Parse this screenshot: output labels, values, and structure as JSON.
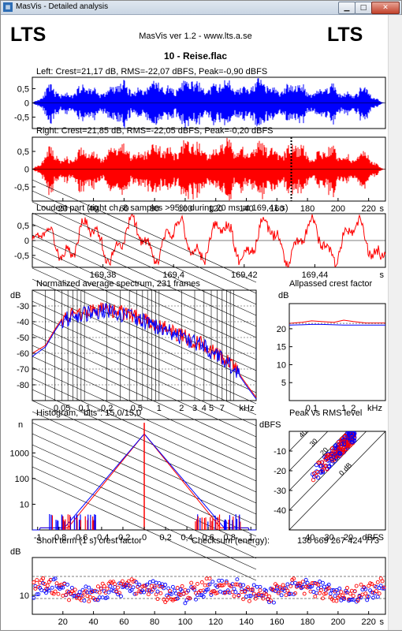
{
  "window": {
    "title": "MasVis - Detailed analysis",
    "icon": "app-icon",
    "minimize_glyph": "▁",
    "maximize_glyph": "□",
    "close_glyph": "✕"
  },
  "header": {
    "logo_left": "LTS",
    "logo_right": "LTS",
    "version": "MasVis ver 1.2 - www.lts.a.se",
    "file": "10 - Reise.flac"
  },
  "colors": {
    "left": "#0000ff",
    "right": "#ff0000",
    "grid": "#000000"
  },
  "chart_data": [
    {
      "id": "left-waveform",
      "type": "line",
      "title": "Left: Crest=21,17 dB, RMS=-22,07 dBFS, Peak=-0,90 dBFS",
      "y_ticks": [
        "0,5",
        "0",
        "-0,5"
      ],
      "y_tick_values": [
        0.5,
        0,
        -0.5
      ],
      "ylim": [
        -0.9,
        0.9
      ],
      "xlim": [
        0,
        231
      ],
      "color": "#0000ff"
    },
    {
      "id": "right-waveform",
      "type": "line",
      "title": "Right: Crest=21,85 dB, RMS=-22,05 dBFS, Peak=-0,20 dBFS",
      "y_ticks": [
        "0,5",
        "0",
        "-0,5"
      ],
      "y_tick_values": [
        0.5,
        0,
        -0.5
      ],
      "ylim": [
        -0.9,
        0.9
      ],
      "xlim": [
        0,
        231
      ],
      "x_ticks": [
        "20",
        "40",
        "60",
        "80",
        "100",
        "120",
        "140",
        "160",
        "180",
        "200",
        "220",
        "s"
      ],
      "x_tick_values": [
        20,
        40,
        60,
        80,
        100,
        120,
        140,
        160,
        180,
        200,
        220
      ],
      "marker_x": 169.41,
      "color": "#ff0000"
    },
    {
      "id": "loudest-part",
      "type": "line",
      "title": "Loudest part (right ch, 8 samples >95% during 20 ms at 169,41 s)",
      "y_ticks": [
        "0,5",
        "0",
        "-0,5"
      ],
      "y_tick_values": [
        0.5,
        0,
        -0.5
      ],
      "ylim": [
        -0.9,
        0.9
      ],
      "xlim": [
        169.36,
        169.46
      ],
      "x_ticks": [
        "169,38",
        "169,4",
        "169,42",
        "169,44",
        "s"
      ],
      "x_tick_values": [
        169.38,
        169.4,
        169.42,
        169.44
      ],
      "color": "#ff0000"
    },
    {
      "id": "spectrum",
      "type": "line",
      "title": "Normalized average spectrum, 231 frames",
      "ylabel": "dB",
      "y_ticks": [
        "-30",
        "-40",
        "-50",
        "-60",
        "-70",
        "-80"
      ],
      "y_tick_values": [
        -30,
        -40,
        -50,
        -60,
        -70,
        -80
      ],
      "ylim": [
        -90,
        -20
      ],
      "x_ticks": [
        "0,05",
        "0,1",
        "0,2",
        "0,5",
        "1",
        "2",
        "3",
        "4",
        "5",
        "7",
        "kHz"
      ],
      "x_tick_values": [
        0.05,
        0.1,
        0.2,
        0.5,
        1,
        2,
        3,
        4,
        5,
        7
      ],
      "xlim": [
        0.02,
        20
      ],
      "xscale": "log",
      "series": [
        {
          "color": "#ff0000",
          "x": [
            0.02,
            0.03,
            0.04,
            0.05,
            0.07,
            0.1,
            0.15,
            0.2,
            0.3,
            0.5,
            0.7,
            1,
            1.5,
            2,
            3,
            4,
            5,
            7,
            10,
            15,
            20
          ],
          "y": [
            -60,
            -55,
            -45,
            -38,
            -36,
            -34,
            -33,
            -32,
            -34,
            -37,
            -40,
            -43,
            -46,
            -49,
            -52,
            -55,
            -58,
            -63,
            -68,
            -80,
            -88
          ]
        },
        {
          "color": "#0000ff",
          "x": [
            0.02,
            0.03,
            0.04,
            0.05,
            0.07,
            0.1,
            0.15,
            0.2,
            0.3,
            0.5,
            0.7,
            1,
            1.5,
            2,
            3,
            4,
            5,
            7,
            10,
            15,
            20
          ],
          "y": [
            -62,
            -56,
            -46,
            -39,
            -37,
            -35,
            -34,
            -33,
            -35,
            -38,
            -41,
            -44,
            -47,
            -50,
            -53,
            -56,
            -59,
            -64,
            -69,
            -81,
            -89
          ]
        }
      ]
    },
    {
      "id": "allpassed-crest",
      "type": "line",
      "title": "Allpassed crest factor",
      "ylabel": "dB",
      "y_ticks": [
        "20",
        "15",
        "10",
        "5"
      ],
      "y_tick_values": [
        20,
        15,
        10,
        5
      ],
      "ylim": [
        0,
        27
      ],
      "x_ticks": [
        "0,1",
        "1",
        "2",
        "kHz"
      ],
      "x_tick_values": [
        0.1,
        1,
        2
      ],
      "xlim": [
        0.02,
        20
      ],
      "xscale": "log",
      "series": [
        {
          "color": "#ff0000",
          "x": [
            0.02,
            0.05,
            0.1,
            0.2,
            0.5,
            1,
            2,
            5,
            10,
            20
          ],
          "y": [
            21.5,
            21.8,
            22.2,
            22.0,
            21.8,
            22.4,
            22.0,
            21.6,
            21.6,
            21.6
          ]
        },
        {
          "color": "#0000ff",
          "x": [
            0.02,
            0.05,
            0.1,
            0.2,
            0.5,
            1,
            2,
            5,
            10,
            20
          ],
          "y": [
            21.0,
            21.1,
            21.2,
            21.2,
            21.1,
            21.0,
            21.0,
            21.0,
            21.0,
            21.0
          ]
        }
      ]
    },
    {
      "id": "histogram",
      "type": "bar",
      "title": "Histogram, \"bits\": 15,0/15,0",
      "ylabel": "n",
      "y_ticks": [
        "1000",
        "100",
        "10"
      ],
      "y_tick_values": [
        1000,
        100,
        10
      ],
      "ylim": [
        1,
        20000
      ],
      "yscale": "log",
      "x_ticks": [
        "-1",
        "-0,8",
        "-0,6",
        "-0,4",
        "-0,2",
        "0",
        "0,2",
        "0,4",
        "0,6",
        "0,8",
        "1"
      ],
      "x_tick_values": [
        -1,
        -0.8,
        -0.6,
        -0.4,
        -0.2,
        0,
        0.2,
        0.4,
        0.6,
        0.8,
        1
      ],
      "xlim": [
        -1.05,
        1.05
      ]
    },
    {
      "id": "peak-vs-rms",
      "type": "scatter",
      "title": "Peak vs RMS level",
      "ylabel": "dBFS",
      "xlabel": "dBFS",
      "y_ticks": [
        "-10",
        "-20",
        "-30",
        "-40"
      ],
      "y_tick_values": [
        -10,
        -20,
        -30,
        -40
      ],
      "ylim": [
        -50,
        0
      ],
      "x_ticks": [
        "-40",
        "-30",
        "-20"
      ],
      "x_tick_values": [
        -40,
        -30,
        -20
      ],
      "xlim": [
        -50,
        0
      ],
      "diag_labels": [
        "40",
        "30",
        "20",
        "10",
        "0 dB"
      ],
      "diag_values": [
        40,
        30,
        20,
        10,
        0
      ]
    },
    {
      "id": "short-term-crest",
      "type": "scatter",
      "title": "Short term (1 s) crest factor",
      "ylabel": "dB",
      "y_ticks": [
        "10"
      ],
      "y_tick_values": [
        10
      ],
      "ylim": [
        4,
        22
      ],
      "x_ticks": [
        "20",
        "40",
        "60",
        "80",
        "100",
        "120",
        "140",
        "160",
        "180",
        "200",
        "220",
        "s"
      ],
      "x_tick_values": [
        20,
        40,
        60,
        80,
        100,
        120,
        140,
        160,
        180,
        200,
        220
      ],
      "xlim": [
        0,
        231
      ],
      "dashed_levels": [
        16,
        9
      ]
    }
  ],
  "checksum": {
    "label": "Checksum (energy):",
    "value": "136 669 267 424 773"
  }
}
